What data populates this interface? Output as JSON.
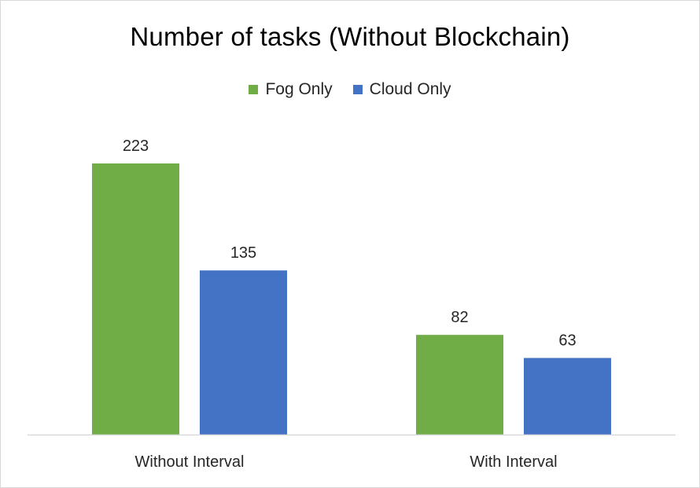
{
  "chart_data": {
    "type": "bar",
    "title": "Number of tasks (Without Blockchain)",
    "categories": [
      "Without Interval",
      "With Interval"
    ],
    "series": [
      {
        "name": "Fog Only",
        "values": [
          223,
          82
        ],
        "color": "#70ad47"
      },
      {
        "name": "Cloud Only",
        "values": [
          135,
          63
        ],
        "color": "#4472c4"
      }
    ],
    "xlabel": "",
    "ylabel": "",
    "ylim": [
      0,
      223
    ],
    "grid": false,
    "legend_position": "top",
    "data_labels": true
  }
}
